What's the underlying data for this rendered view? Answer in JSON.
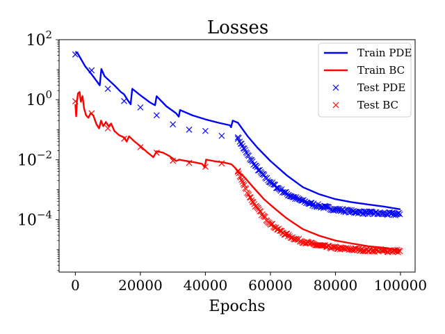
{
  "chart_data": {
    "type": "line",
    "title": "Losses",
    "xlabel": "Epochs",
    "ylabel": "",
    "xscale": "linear",
    "yscale": "log",
    "xlim": [
      -5000,
      104500
    ],
    "ylim_log10": [
      -5.75,
      2.0
    ],
    "x_ticks": [
      0,
      20000,
      40000,
      60000,
      80000,
      100000
    ],
    "x_tick_labels": [
      "0",
      "20000",
      "40000",
      "60000",
      "80000",
      "100000"
    ],
    "y_ticks": [
      {
        "exp": 2,
        "base": "10",
        "sup": "2"
      },
      {
        "exp": 0,
        "base": "10",
        "sup": "0"
      },
      {
        "exp": -2,
        "base": "10",
        "sup": "−2"
      },
      {
        "exp": -4,
        "base": "10",
        "sup": "−4"
      }
    ],
    "legend_position": "top-right",
    "series": [
      {
        "name": "Train PDE",
        "kind": "line",
        "color": "#0000ff",
        "points": [
          [
            0,
            40
          ],
          [
            700,
            35
          ],
          [
            1500,
            25
          ],
          [
            3000,
            13
          ],
          [
            5000,
            7
          ],
          [
            7500,
            3
          ],
          [
            8000,
            10.5
          ],
          [
            9000,
            6
          ],
          [
            12000,
            3
          ],
          [
            14000,
            1.8
          ],
          [
            15000,
            1.5
          ],
          [
            16000,
            1.0
          ],
          [
            17000,
            0.7
          ],
          [
            17500,
            2.3
          ],
          [
            20000,
            1.4
          ],
          [
            23000,
            0.8
          ],
          [
            24500,
            0.65
          ],
          [
            25000,
            1.3
          ],
          [
            28000,
            0.6
          ],
          [
            31000,
            0.35
          ],
          [
            31800,
            0.27
          ],
          [
            32200,
            0.45
          ],
          [
            36000,
            0.3
          ],
          [
            40000,
            0.22
          ],
          [
            44000,
            0.17
          ],
          [
            47500,
            0.14
          ],
          [
            47900,
            0.12
          ],
          [
            48400,
            0.2
          ],
          [
            50000,
            0.17
          ],
          [
            51000,
            0.12
          ],
          [
            53000,
            0.06
          ],
          [
            56000,
            0.025
          ],
          [
            60000,
            0.009
          ],
          [
            65000,
            0.003
          ],
          [
            70000,
            0.0012
          ],
          [
            75000,
            0.0007
          ],
          [
            80000,
            0.00048
          ],
          [
            85000,
            0.00038
          ],
          [
            90000,
            0.00032
          ],
          [
            95000,
            0.00027
          ],
          [
            100000,
            0.00022
          ]
        ]
      },
      {
        "name": "Train BC",
        "kind": "line",
        "color": "#ff0000",
        "points": [
          [
            0,
            0.7
          ],
          [
            250,
            0.28
          ],
          [
            500,
            0.9
          ],
          [
            800,
            1.6
          ],
          [
            1300,
            1.8
          ],
          [
            1700,
            0.85
          ],
          [
            2200,
            1.3
          ],
          [
            2700,
            0.5
          ],
          [
            3300,
            0.3
          ],
          [
            4000,
            0.25
          ],
          [
            4700,
            0.35
          ],
          [
            5500,
            0.3
          ],
          [
            6500,
            0.15
          ],
          [
            7300,
            0.11
          ],
          [
            7900,
            0.2
          ],
          [
            8600,
            0.13
          ],
          [
            9400,
            0.18
          ],
          [
            10200,
            0.13
          ],
          [
            11000,
            0.16
          ],
          [
            12000,
            0.09
          ],
          [
            13500,
            0.065
          ],
          [
            15000,
            0.055
          ],
          [
            15800,
            0.04
          ],
          [
            16500,
            0.06
          ],
          [
            18000,
            0.042
          ],
          [
            20000,
            0.028
          ],
          [
            22000,
            0.018
          ],
          [
            24000,
            0.012
          ],
          [
            25000,
            0.019
          ],
          [
            27000,
            0.017
          ],
          [
            29000,
            0.013
          ],
          [
            31000,
            0.009
          ],
          [
            32000,
            0.01
          ],
          [
            34000,
            0.009
          ],
          [
            37000,
            0.008
          ],
          [
            39000,
            0.0072
          ],
          [
            39800,
            0.0055
          ],
          [
            40200,
            0.01
          ],
          [
            43000,
            0.0088
          ],
          [
            46000,
            0.0079
          ],
          [
            48000,
            0.007
          ],
          [
            49000,
            0.0055
          ],
          [
            50000,
            0.0042
          ],
          [
            52000,
            0.0026
          ],
          [
            55000,
            0.0011
          ],
          [
            58000,
            0.00048
          ],
          [
            61000,
            0.00025
          ],
          [
            65000,
            0.00011
          ],
          [
            70000,
            4.8e-05
          ],
          [
            75000,
            2.9e-05
          ],
          [
            80000,
            2e-05
          ],
          [
            85000,
            1.6e-05
          ],
          [
            90000,
            1.3e-05
          ],
          [
            95000,
            1.15e-05
          ],
          [
            100000,
            9.5e-06
          ]
        ]
      },
      {
        "name": "Test PDE",
        "kind": "scatter",
        "color": "#0000ff",
        "points": [
          [
            0,
            32
          ],
          [
            5000,
            9.5
          ],
          [
            10000,
            2.3
          ],
          [
            15000,
            0.9
          ],
          [
            20000,
            0.55
          ],
          [
            25000,
            0.3
          ],
          [
            30000,
            0.15
          ],
          [
            35000,
            0.1
          ],
          [
            40000,
            0.09
          ],
          [
            45000,
            0.062
          ],
          [
            50000,
            0.055
          ]
        ],
        "dense": {
          "x0": 50000,
          "x1": 100000,
          "step": 280,
          "y0": 0.055,
          "y_end": 0.00015,
          "k": 8.5e-05,
          "noise": 0.1
        }
      },
      {
        "name": "Test BC",
        "kind": "scatter",
        "color": "#ff0000",
        "points": [
          [
            0,
            0.88
          ],
          [
            5000,
            0.35
          ],
          [
            10000,
            0.11
          ],
          [
            15000,
            0.05
          ],
          [
            20000,
            0.026
          ],
          [
            25000,
            0.017
          ],
          [
            30000,
            0.0092
          ],
          [
            35000,
            0.0078
          ],
          [
            40000,
            0.0058
          ],
          [
            45000,
            0.0075
          ],
          [
            50000,
            0.0042
          ]
        ],
        "dense": {
          "x0": 50000,
          "x1": 100000,
          "step": 280,
          "y0": 0.0042,
          "y_end": 9e-06,
          "k": 0.000105,
          "noise": 0.09
        }
      }
    ]
  }
}
